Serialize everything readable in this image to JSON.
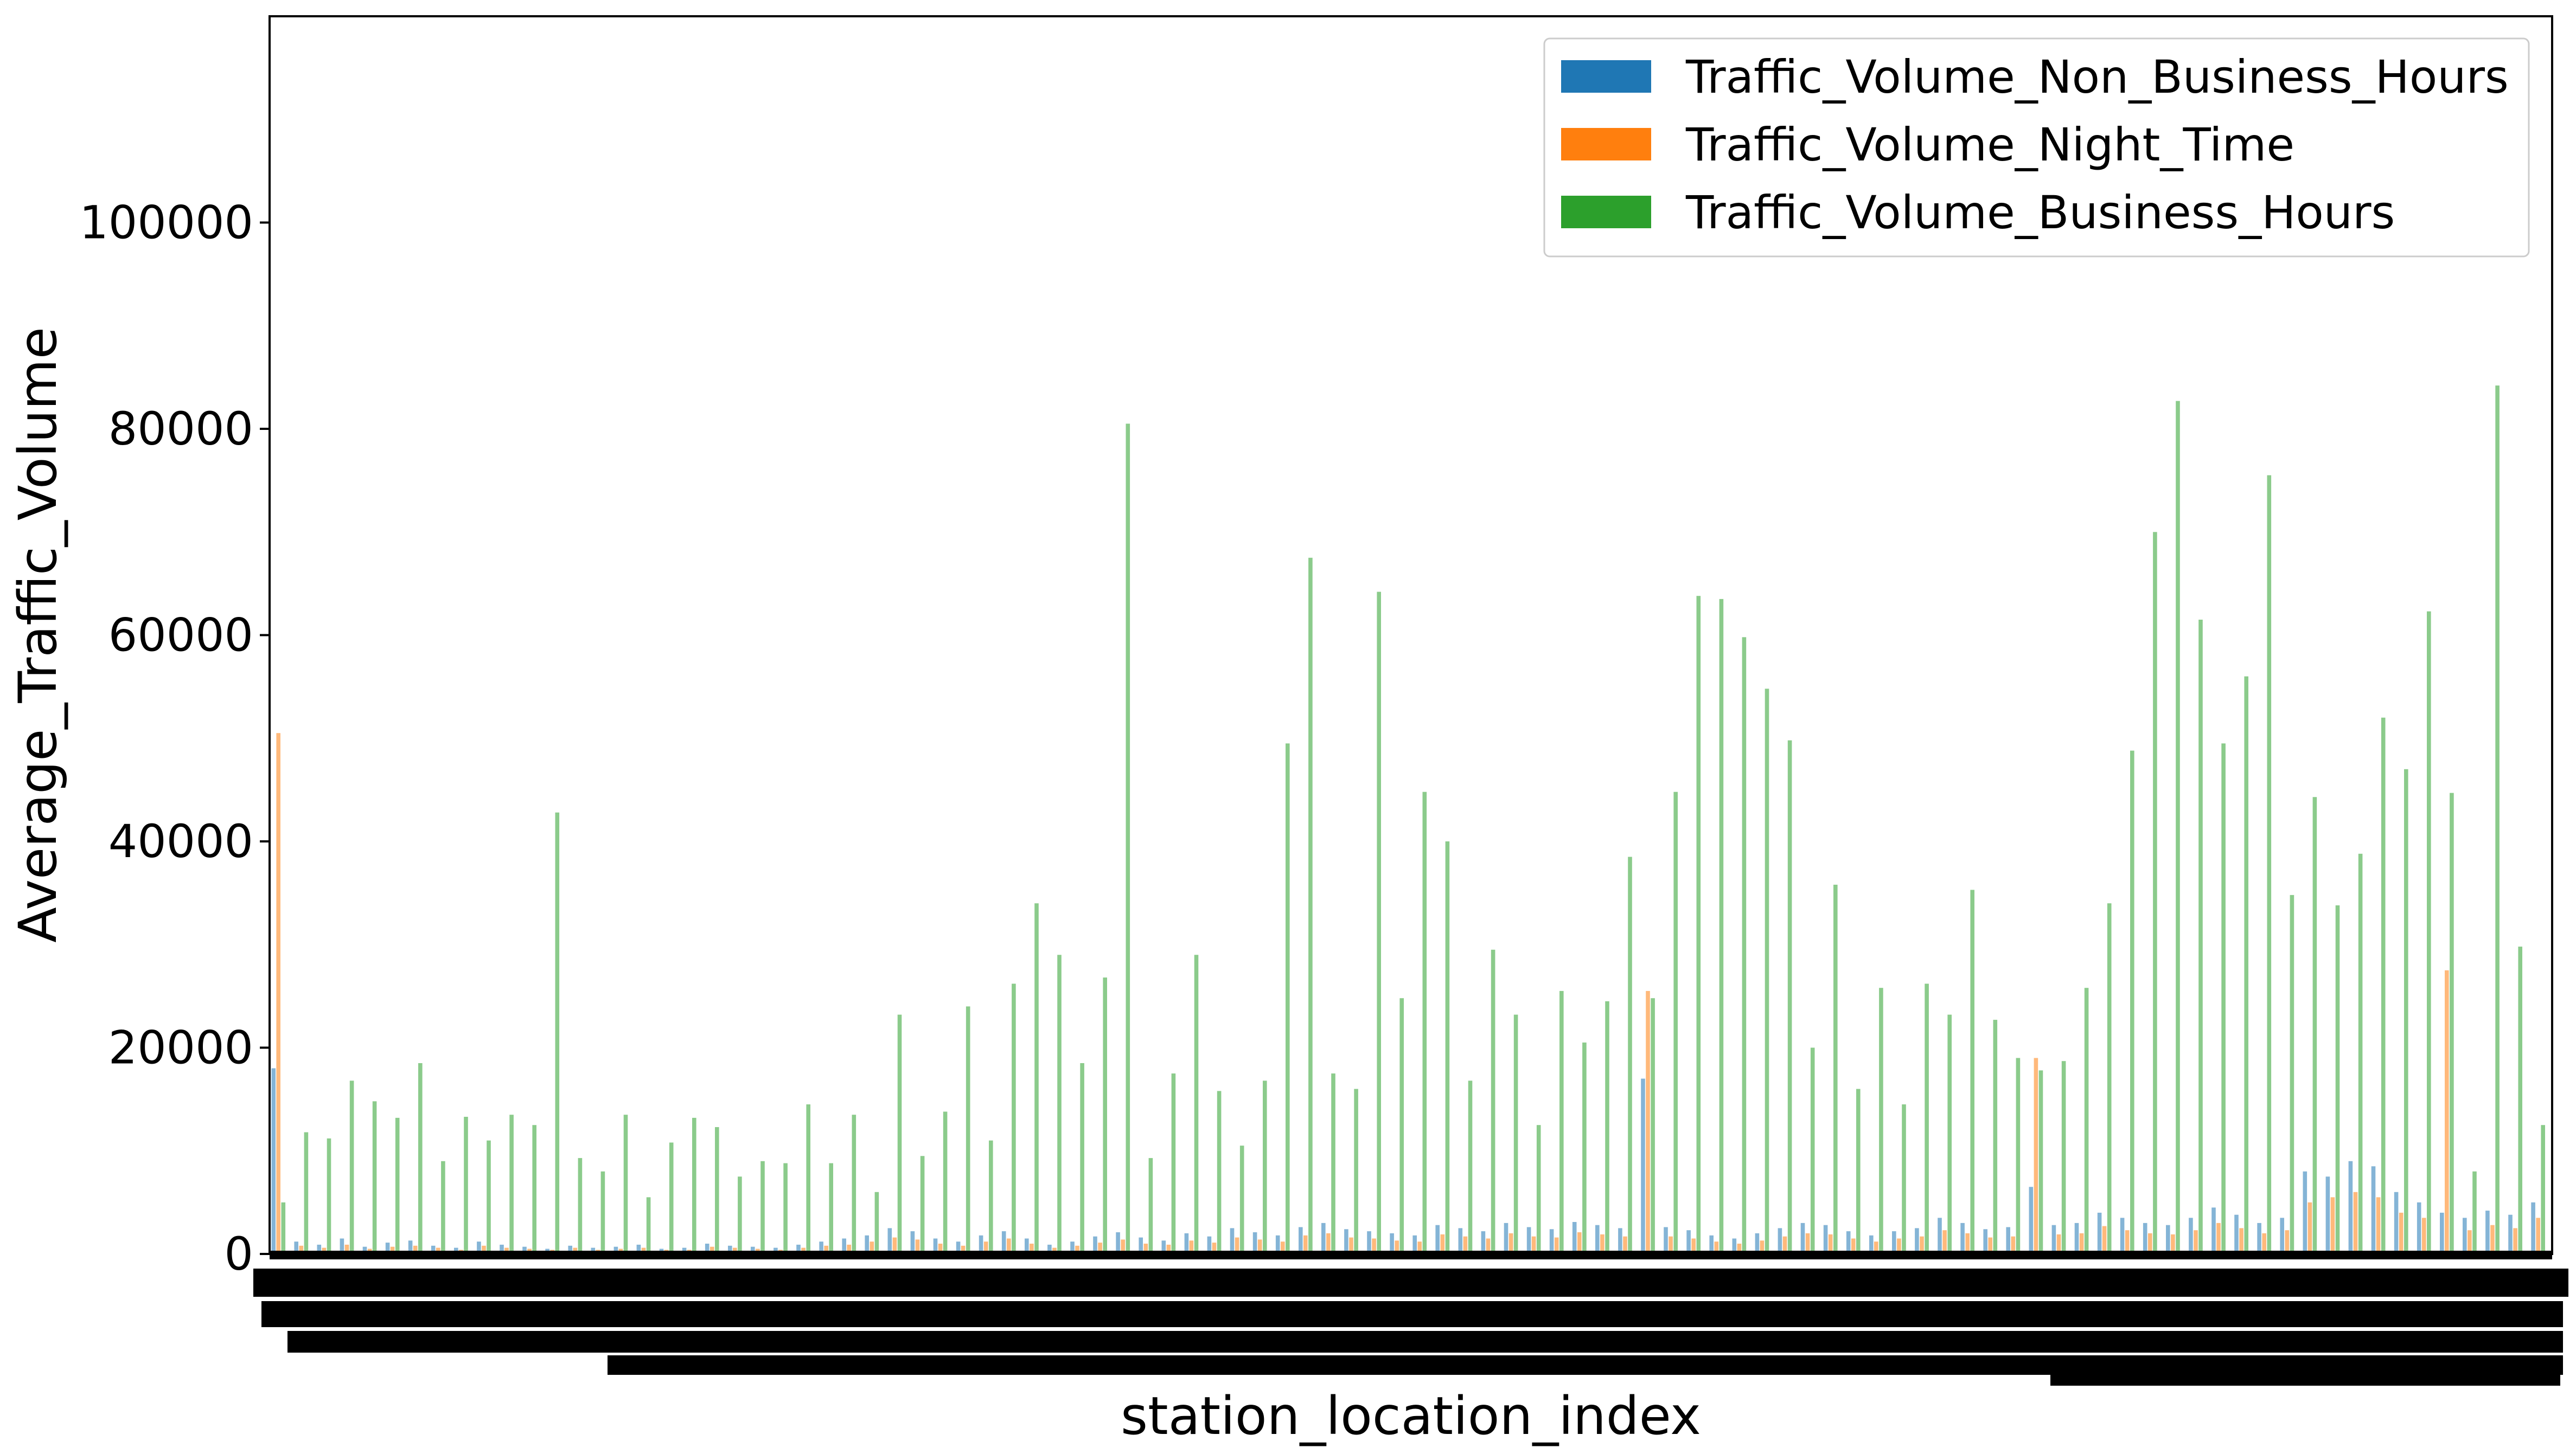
{
  "chart_data": {
    "type": "bar",
    "title": "",
    "xlabel": "station_location_index",
    "ylabel": "Average_Traffic_Volume",
    "ylim": [
      0,
      120000
    ],
    "yticks": [
      0,
      20000,
      40000,
      60000,
      80000,
      100000
    ],
    "ytick_labels": [
      "0",
      "20000",
      "40000",
      "60000",
      "80000",
      "100000"
    ],
    "xtick_note": "x tick labels are overlapping and illegible",
    "legend_position": "top-right",
    "series": [
      {
        "name": "Traffic_Volume_Non_Business_Hours",
        "color": "#1f77b4",
        "values": [
          18000,
          1200,
          900,
          1500,
          700,
          1100,
          1300,
          800,
          600,
          1200,
          900,
          700,
          500,
          800,
          600,
          700,
          900,
          500,
          600,
          1000,
          800,
          700,
          600,
          900,
          1200,
          1500,
          1800,
          2500,
          2200,
          1500,
          1200,
          1800,
          2200,
          1500,
          900,
          1200,
          1700,
          2100,
          1600,
          1300,
          2000,
          1700,
          2500,
          2100,
          1800,
          2600,
          3000,
          2400,
          2200,
          2000,
          1800,
          2800,
          2500,
          2200,
          3000,
          2600,
          2400,
          3100,
          2800,
          2500,
          17000,
          2600,
          2300,
          1800,
          1500,
          2000,
          2500,
          3000,
          2800,
          2200,
          1800,
          2200,
          2500,
          3500,
          3000,
          2400,
          2600,
          6500,
          2800,
          3000,
          4000,
          3500,
          3000,
          2800,
          3500,
          4500,
          3800,
          3000,
          3500,
          8000,
          7500,
          9000,
          8500,
          6000,
          5000,
          4000,
          3500,
          4200,
          3800,
          5000
        ]
      },
      {
        "name": "Traffic_Volume_Night_Time",
        "color": "#ff7f0e",
        "values": [
          50500,
          800,
          600,
          900,
          500,
          700,
          800,
          600,
          400,
          800,
          600,
          500,
          400,
          600,
          400,
          500,
          600,
          400,
          400,
          700,
          600,
          500,
          400,
          600,
          800,
          900,
          1200,
          1600,
          1400,
          1000,
          800,
          1200,
          1500,
          1000,
          600,
          800,
          1100,
          1400,
          1000,
          900,
          1300,
          1100,
          1600,
          1400,
          1200,
          1800,
          2000,
          1600,
          1500,
          1300,
          1200,
          1900,
          1700,
          1500,
          2000,
          1700,
          1600,
          2100,
          1900,
          1700,
          25500,
          1700,
          1500,
          1200,
          1000,
          1300,
          1700,
          2000,
          1900,
          1500,
          1200,
          1500,
          1700,
          2300,
          2000,
          1600,
          1700,
          19000,
          1900,
          2000,
          2700,
          2300,
          2000,
          1900,
          2300,
          3000,
          2500,
          2000,
          2300,
          5000,
          5500,
          6000,
          5500,
          4000,
          3500,
          27500,
          2300,
          2800,
          2500,
          3500
        ]
      },
      {
        "name": "Traffic_Volume_Business_Hours",
        "color": "#2ca02c",
        "values": [
          5000,
          11800,
          11200,
          16800,
          14800,
          13200,
          18500,
          9000,
          13300,
          11000,
          13500,
          12500,
          42800,
          9300,
          8000,
          13500,
          5500,
          10800,
          13200,
          12300,
          7500,
          9000,
          8800,
          14500,
          8800,
          13500,
          6000,
          23200,
          9500,
          13800,
          24000,
          11000,
          26200,
          34000,
          29000,
          18500,
          26800,
          80500,
          9300,
          17500,
          29000,
          15800,
          10500,
          16800,
          49500,
          67500,
          17500,
          16000,
          64200,
          24800,
          44800,
          40000,
          16800,
          29500,
          23200,
          12500,
          25500,
          20500,
          24500,
          38500,
          24800,
          44800,
          63800,
          63500,
          59800,
          54800,
          49800,
          20000,
          35800,
          16000,
          25800,
          14500,
          26200,
          23200,
          35300,
          22700,
          19000,
          17800,
          18700,
          25800,
          34000,
          48800,
          70000,
          82700,
          61500,
          49500,
          56000,
          75500,
          34800,
          44300,
          33800,
          38800,
          52000,
          47000,
          62300,
          44700,
          8000,
          84200,
          29800,
          12500
        ]
      }
    ]
  }
}
